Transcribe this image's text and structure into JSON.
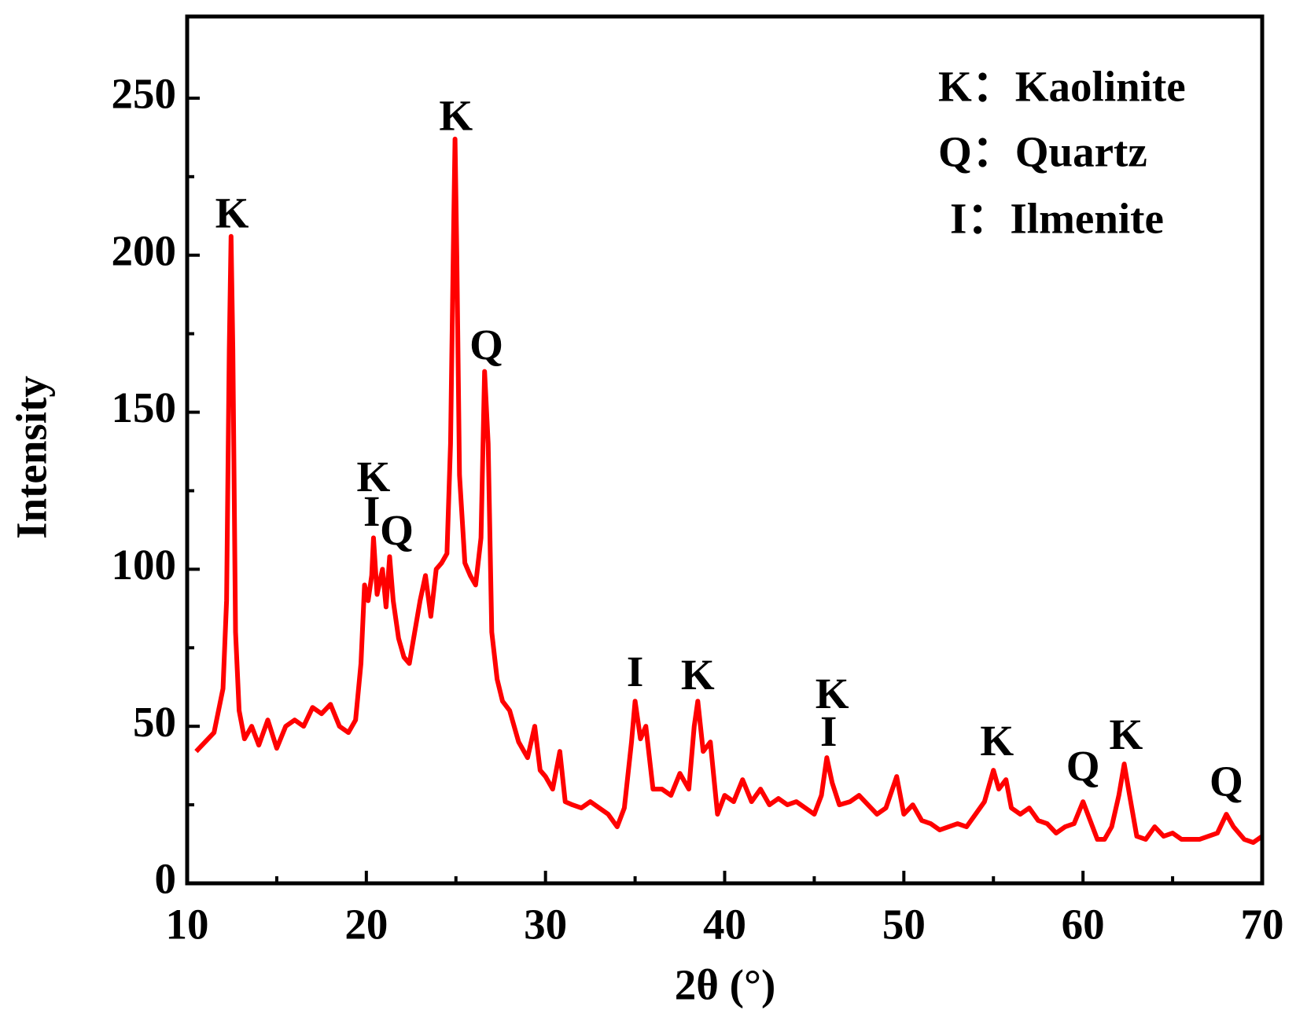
{
  "chart_data": {
    "type": "line",
    "x_label": "2θ (°)",
    "y_label": "Intensity",
    "xlim": [
      10,
      70
    ],
    "xticks": [
      10,
      20,
      30,
      40,
      50,
      60,
      70
    ],
    "ylim": [
      0,
      276
    ],
    "yticks": [
      0,
      50,
      100,
      150,
      200,
      250
    ],
    "xminorticks": [
      15,
      25,
      35,
      45,
      55,
      65
    ],
    "yminorticks": [
      25,
      75,
      125,
      175,
      225
    ],
    "legend_text": [
      "K：Kaolinite",
      "Q：Quartz",
      "I：Ilmenite"
    ],
    "x": [
      10.5,
      11,
      11.5,
      12,
      12.2,
      12.35,
      12.45,
      12.55,
      12.7,
      12.9,
      13.2,
      13.6,
      14,
      14.5,
      15,
      15.5,
      16,
      16.5,
      17,
      17.5,
      18,
      18.5,
      19,
      19.4,
      19.7,
      19.9,
      20.1,
      20.3,
      20.4,
      20.6,
      20.9,
      21.1,
      21.3,
      21.5,
      21.8,
      22.1,
      22.4,
      22.7,
      23,
      23.3,
      23.6,
      23.9,
      24.2,
      24.5,
      24.7,
      24.85,
      24.95,
      25.05,
      25.2,
      25.5,
      25.8,
      26.1,
      26.4,
      26.6,
      26.8,
      27,
      27.3,
      27.6,
      28,
      28.5,
      29,
      29.4,
      29.7,
      30,
      30.4,
      30.8,
      31.1,
      31.5,
      32,
      32.5,
      33,
      33.5,
      34,
      34.4,
      34.8,
      35,
      35.3,
      35.6,
      36,
      36.5,
      37,
      37.5,
      38,
      38.3,
      38.5,
      38.8,
      39.2,
      39.6,
      40,
      40.5,
      41,
      41.5,
      42,
      42.5,
      43,
      43.5,
      44,
      44.5,
      45,
      45.4,
      45.7,
      46,
      46.4,
      47,
      47.5,
      48,
      48.5,
      49,
      49.6,
      50,
      50.5,
      51,
      51.5,
      52,
      52.5,
      53,
      53.5,
      54,
      54.5,
      55,
      55.3,
      55.7,
      56,
      56.5,
      57,
      57.5,
      58,
      58.5,
      59,
      59.5,
      60,
      60.4,
      60.8,
      61.2,
      61.6,
      62,
      62.3,
      62.6,
      63,
      63.5,
      64,
      64.5,
      65,
      65.5,
      66,
      66.5,
      67,
      67.5,
      68,
      68.4,
      69,
      69.5,
      70
    ],
    "series": [
      {
        "color": "#ff0000",
        "values": [
          42,
          45,
          48,
          62,
          90,
          170,
          206,
          170,
          80,
          55,
          46,
          50,
          44,
          52,
          43,
          50,
          52,
          50,
          56,
          54,
          57,
          50,
          48,
          52,
          70,
          95,
          90,
          98,
          110,
          92,
          100,
          88,
          104,
          90,
          78,
          72,
          70,
          80,
          90,
          98,
          85,
          100,
          102,
          105,
          140,
          200,
          237,
          200,
          130,
          102,
          98,
          95,
          110,
          163,
          140,
          80,
          65,
          58,
          55,
          45,
          40,
          50,
          36,
          34,
          30,
          42,
          26,
          25,
          24,
          26,
          24,
          22,
          18,
          24,
          45,
          58,
          46,
          50,
          30,
          30,
          28,
          35,
          30,
          50,
          58,
          42,
          45,
          22,
          28,
          26,
          33,
          26,
          30,
          25,
          27,
          25,
          26,
          24,
          22,
          28,
          40,
          32,
          25,
          26,
          28,
          25,
          22,
          24,
          34,
          22,
          25,
          20,
          19,
          17,
          18,
          19,
          18,
          22,
          26,
          36,
          30,
          33,
          24,
          22,
          24,
          20,
          19,
          16,
          18,
          19,
          26,
          20,
          14,
          14,
          18,
          28,
          38,
          28,
          15,
          14,
          18,
          15,
          16,
          14,
          14,
          14,
          15,
          16,
          22,
          18,
          14,
          13,
          15
        ]
      }
    ],
    "annotations": [
      {
        "text": "K",
        "x": 12.5,
        "y": 212
      },
      {
        "text": "K",
        "x": 25,
        "y": 243
      },
      {
        "text": "Q",
        "x": 26.7,
        "y": 170
      },
      {
        "text": "K",
        "x": 20.4,
        "y": 128
      },
      {
        "text": "I",
        "x": 20.3,
        "y": 117
      },
      {
        "text": "Q",
        "x": 21.7,
        "y": 111
      },
      {
        "text": "I",
        "x": 35,
        "y": 66
      },
      {
        "text": "K",
        "x": 38.5,
        "y": 65
      },
      {
        "text": "K",
        "x": 46,
        "y": 59
      },
      {
        "text": "I",
        "x": 45.8,
        "y": 47
      },
      {
        "text": "K",
        "x": 55.2,
        "y": 44
      },
      {
        "text": "Q",
        "x": 60,
        "y": 36
      },
      {
        "text": "K",
        "x": 62.4,
        "y": 46
      },
      {
        "text": "Q",
        "x": 68,
        "y": 31
      }
    ]
  }
}
